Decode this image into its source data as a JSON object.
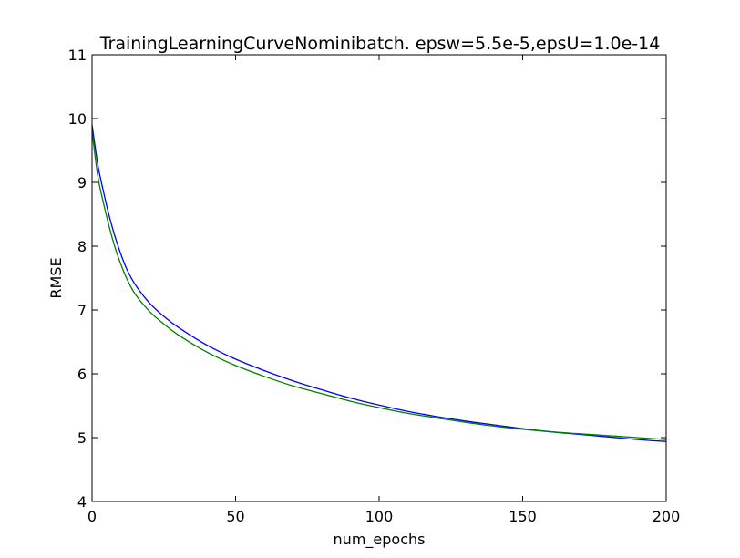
{
  "chart_data": {
    "type": "line",
    "title": "TrainingLearningCurveNominibatch. epsw=5.5e-5,epsU=1.0e-14",
    "xlabel": "num_epochs",
    "ylabel": "RMSE",
    "xlim": [
      0,
      200
    ],
    "ylim": [
      4,
      11
    ],
    "xticks": [
      0,
      50,
      100,
      150,
      200
    ],
    "yticks": [
      4,
      5,
      6,
      7,
      8,
      9,
      10,
      11
    ],
    "grid": false,
    "legend": "none",
    "series": [
      {
        "color": "#0000ff",
        "x": [
          0,
          2,
          4,
          6,
          8,
          10,
          12,
          15,
          20,
          25,
          30,
          40,
          50,
          60,
          70,
          80,
          90,
          100,
          110,
          120,
          130,
          140,
          150,
          160,
          170,
          180,
          190,
          200
        ],
        "y": [
          9.9,
          9.28,
          8.85,
          8.47,
          8.15,
          7.88,
          7.65,
          7.4,
          7.11,
          6.9,
          6.73,
          6.45,
          6.23,
          6.05,
          5.89,
          5.75,
          5.62,
          5.51,
          5.41,
          5.33,
          5.26,
          5.2,
          5.14,
          5.09,
          5.05,
          5.01,
          4.97,
          4.94
        ]
      },
      {
        "color": "#008000",
        "x": [
          0,
          2,
          4,
          6,
          8,
          10,
          12,
          15,
          20,
          25,
          30,
          40,
          50,
          60,
          70,
          80,
          90,
          100,
          110,
          120,
          130,
          140,
          150,
          160,
          170,
          180,
          190,
          200
        ],
        "y": [
          9.8,
          9.1,
          8.67,
          8.3,
          7.98,
          7.72,
          7.5,
          7.25,
          6.98,
          6.78,
          6.61,
          6.34,
          6.13,
          5.96,
          5.81,
          5.69,
          5.57,
          5.47,
          5.38,
          5.31,
          5.24,
          5.18,
          5.13,
          5.09,
          5.06,
          5.03,
          5.0,
          4.97
        ]
      }
    ]
  }
}
